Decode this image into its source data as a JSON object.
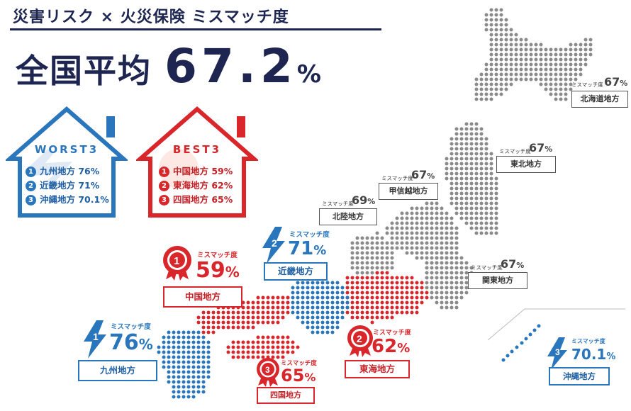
{
  "title": "災害リスク × 火災保険 ミスマッチ度",
  "average": {
    "label": "全国平均",
    "value": "67.2",
    "unit": "%"
  },
  "worst": {
    "label": "WORST3",
    "items": [
      {
        "rank": "1",
        "text": "九州地方 76%"
      },
      {
        "rank": "2",
        "text": "近畿地方 71%"
      },
      {
        "rank": "3",
        "text": "沖縄地方 70.1%"
      }
    ],
    "color": "#2a76bd"
  },
  "best": {
    "label": "BEST3",
    "items": [
      {
        "rank": "1",
        "text": "中国地方 59%"
      },
      {
        "rank": "2",
        "text": "東海地方 62%"
      },
      {
        "rank": "3",
        "text": "四国地方 65%"
      }
    ],
    "color": "#d8262b"
  },
  "mismatch_label": "ミスマッチ度",
  "callouts": {
    "kyushu": {
      "rank": "1",
      "value": "76",
      "unit": "%",
      "name": "九州地方"
    },
    "kinki": {
      "rank": "2",
      "value": "71",
      "unit": "%",
      "name": "近畿地方"
    },
    "okinawa": {
      "rank": "3",
      "value": "70.1",
      "unit": "%",
      "name": "沖縄地方"
    },
    "chugoku": {
      "rank": "1",
      "value": "59",
      "unit": "%",
      "name": "中国地方"
    },
    "tokai": {
      "rank": "2",
      "value": "62",
      "unit": "%",
      "name": "東海地方"
    },
    "shikoku": {
      "rank": "3",
      "value": "65",
      "unit": "%",
      "name": "四国地方"
    },
    "hokkaido": {
      "value": "67",
      "unit": "%",
      "name": "北海道地方"
    },
    "tohoku": {
      "value": "67",
      "unit": "%",
      "name": "東北地方"
    },
    "koshinetsu": {
      "value": "67",
      "unit": "%",
      "name": "甲信越地方"
    },
    "hokuriku": {
      "value": "69",
      "unit": "%",
      "name": "北陸地方"
    },
    "kanto": {
      "value": "67",
      "unit": "%",
      "name": "関東地方"
    }
  },
  "colors": {
    "navy": "#1d2550",
    "blue": "#2a76bd",
    "red": "#d8262b",
    "gray": "#8a8a8a"
  }
}
